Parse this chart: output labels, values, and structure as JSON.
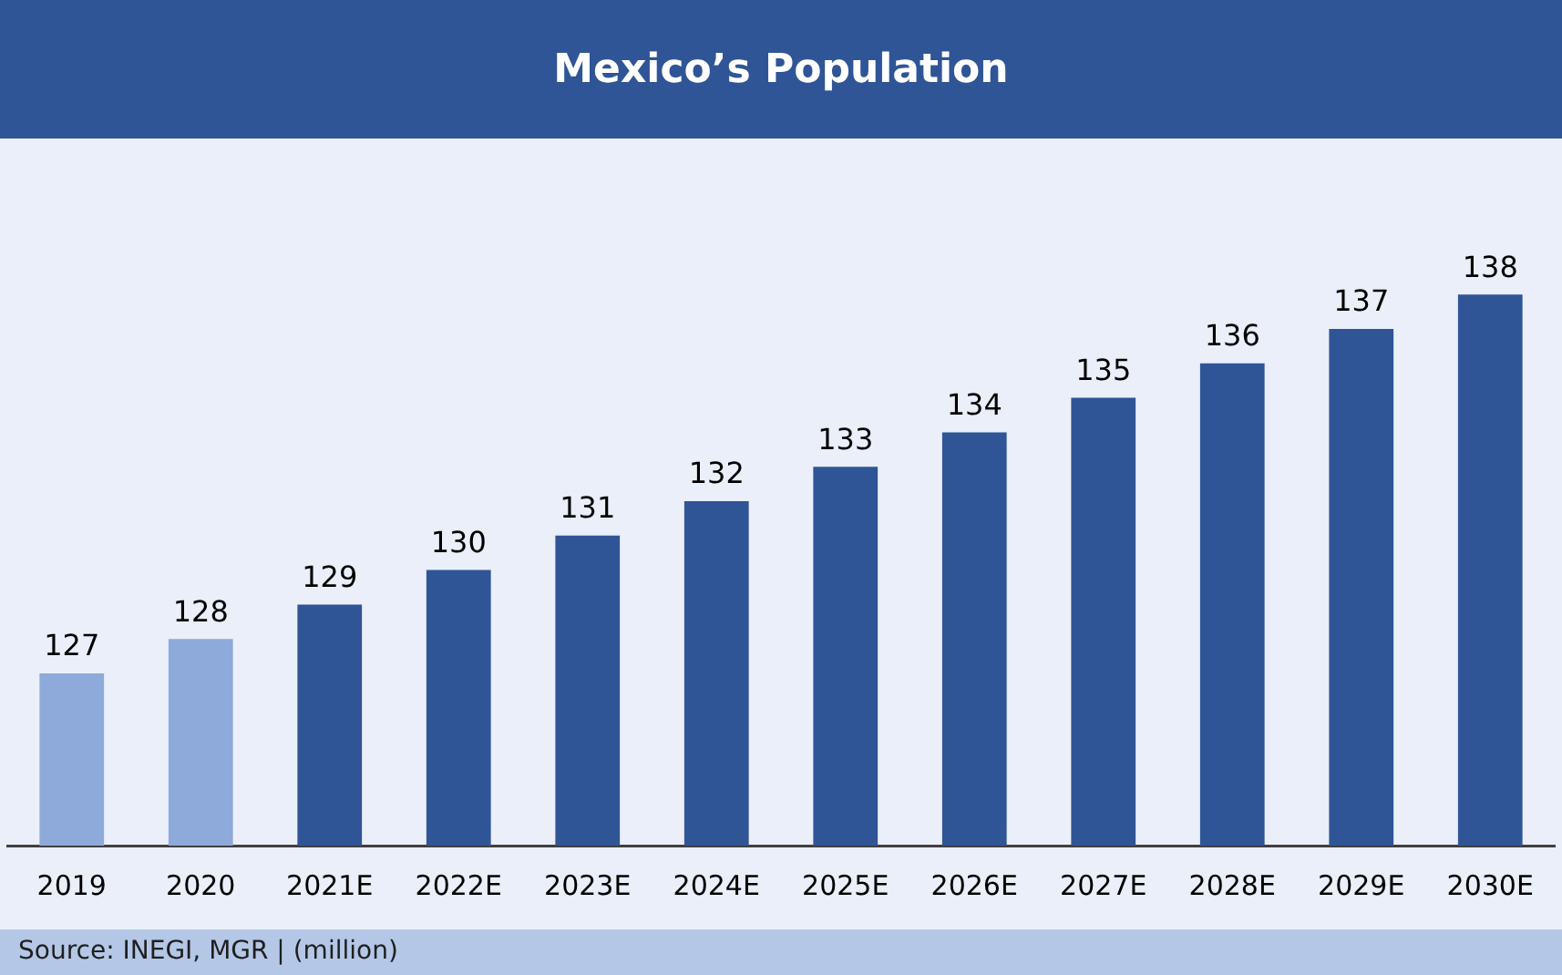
{
  "chart_data": {
    "type": "bar",
    "title": "Mexico’s Population",
    "categories": [
      "2019",
      "2020",
      "2021E",
      "2022E",
      "2023E",
      "2024E",
      "2025E",
      "2026E",
      "2027E",
      "2028E",
      "2029E",
      "2030E"
    ],
    "values": [
      127,
      128,
      129,
      130,
      131,
      132,
      133,
      134,
      135,
      136,
      137,
      138
    ],
    "colors": [
      "#8eaadb",
      "#8eaadb",
      "#2f5597",
      "#2f5597",
      "#2f5597",
      "#2f5597",
      "#2f5597",
      "#2f5597",
      "#2f5597",
      "#2f5597",
      "#2f5597",
      "#2f5597"
    ],
    "data_labels": true,
    "grid": false,
    "legend": false,
    "annotations": [
      "Source: INEGI, MGR | (million)"
    ]
  }
}
